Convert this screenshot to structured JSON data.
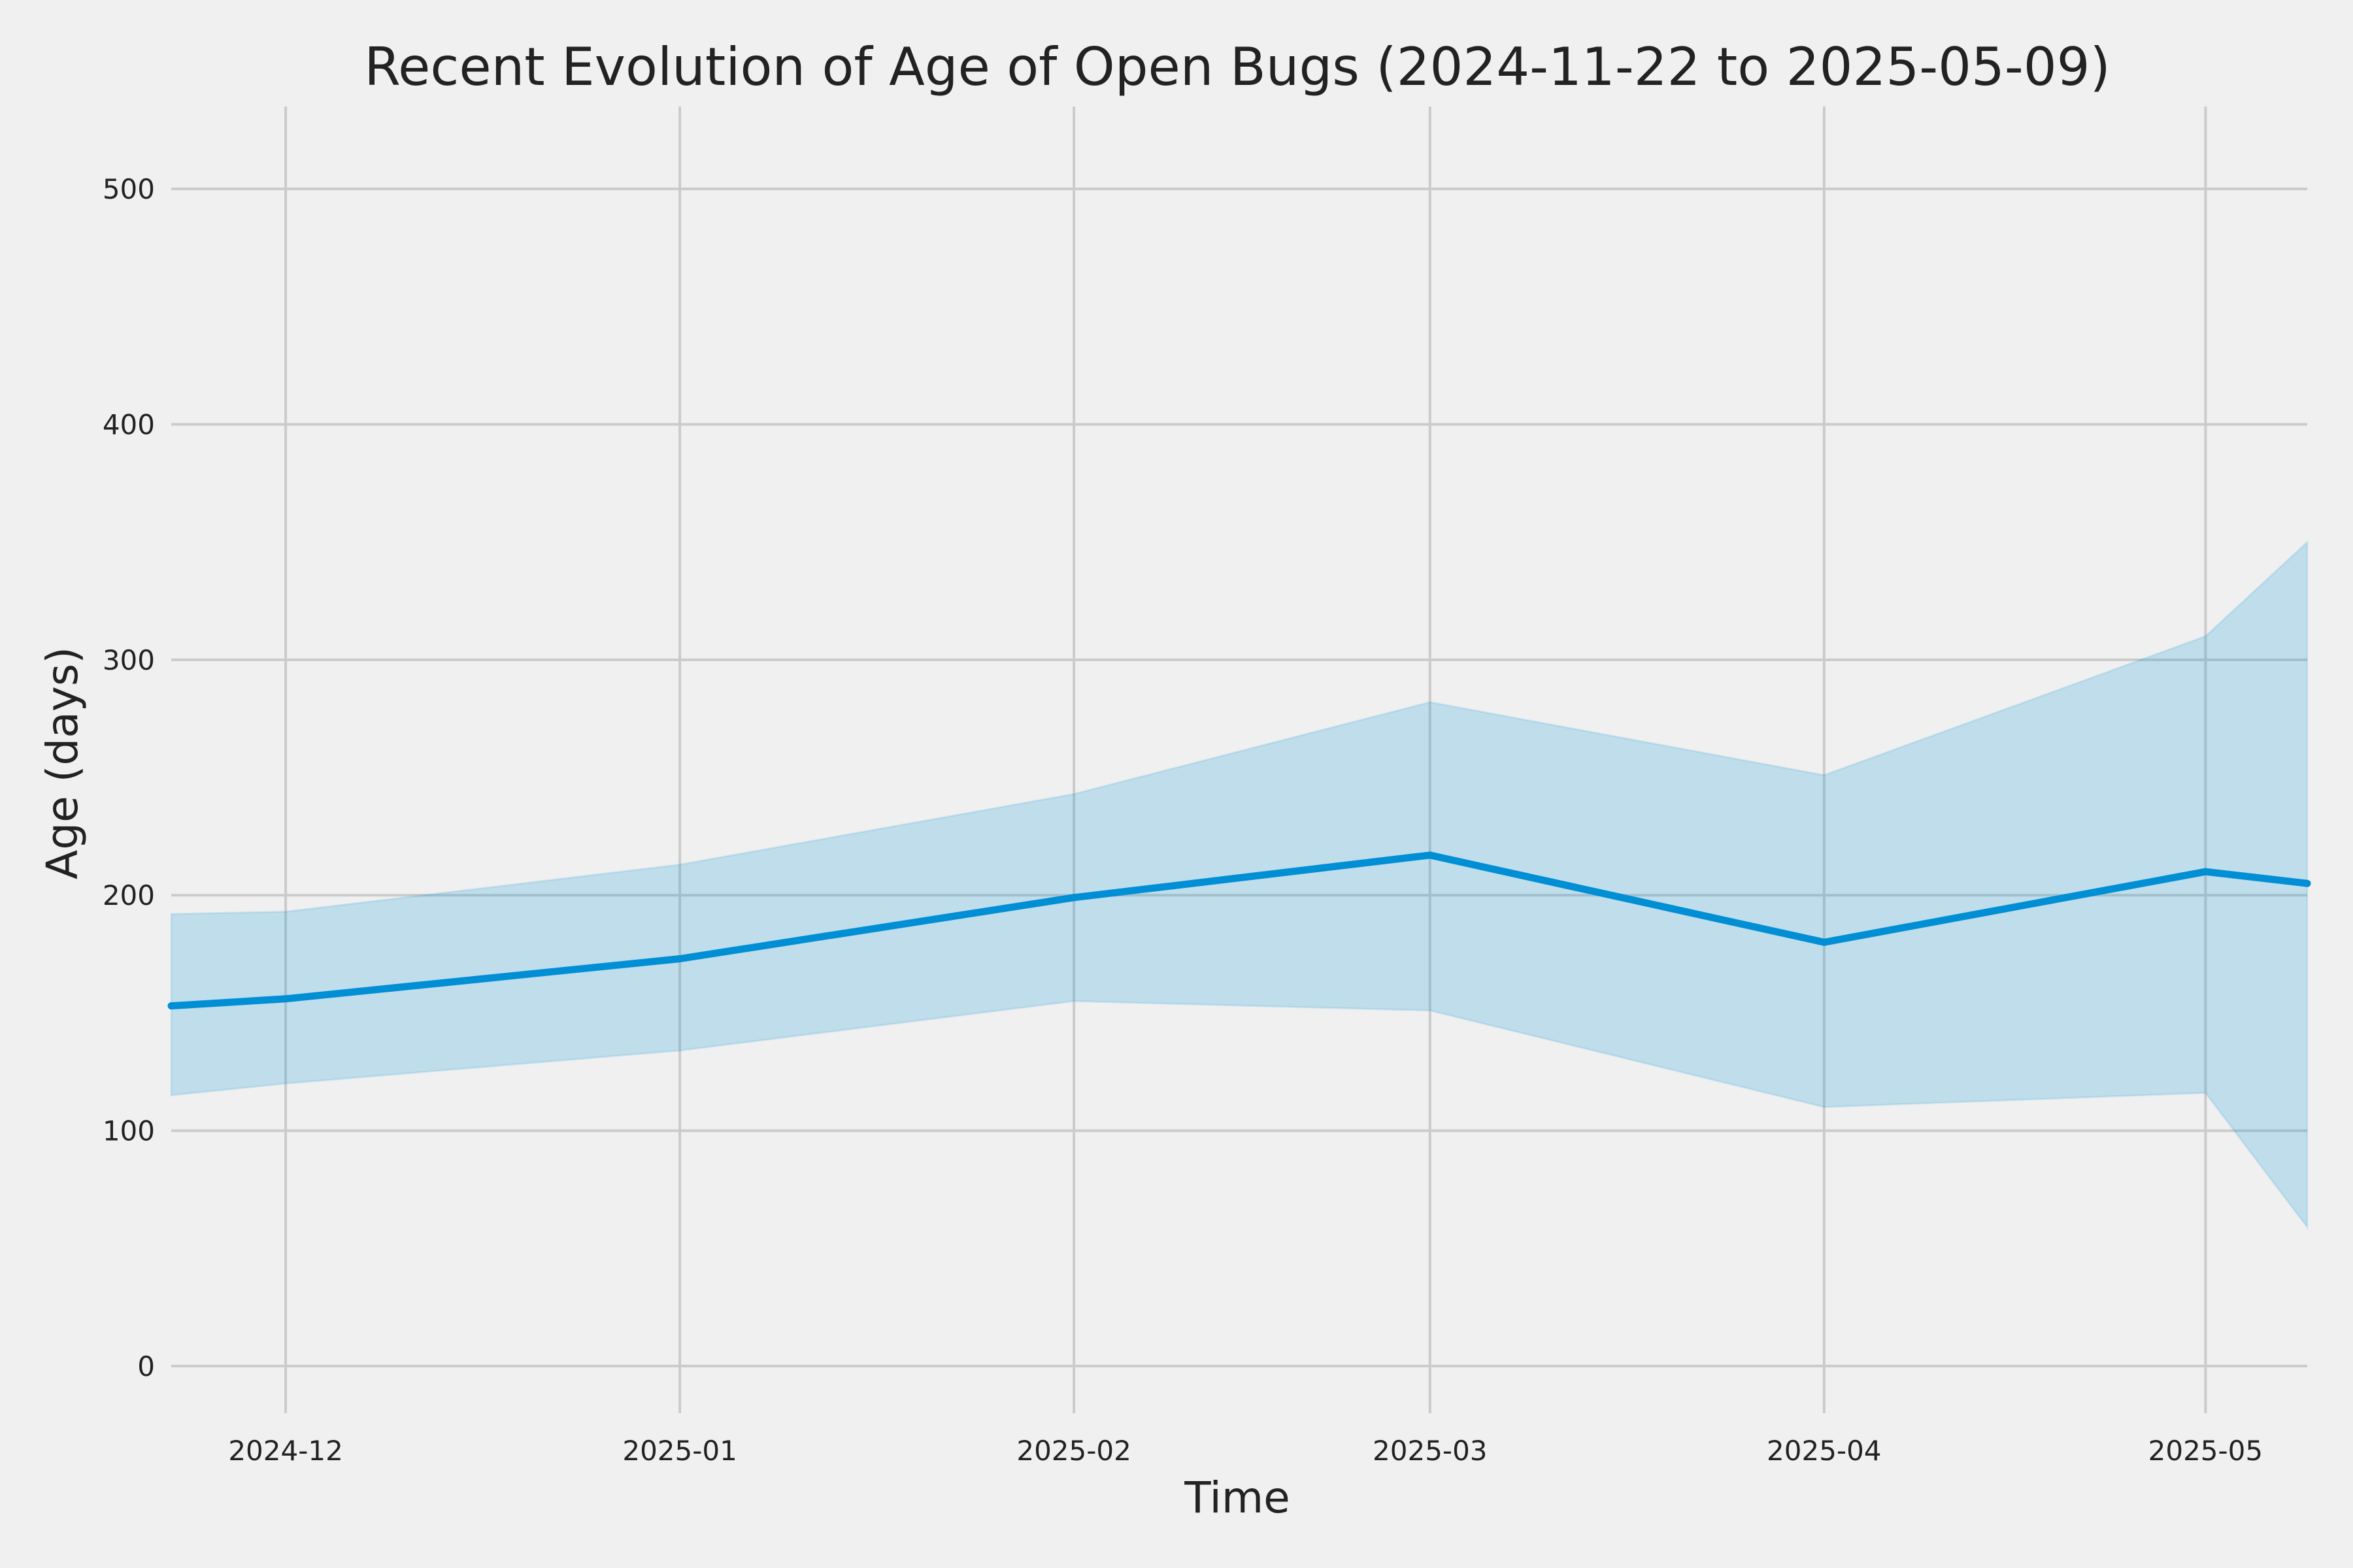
{
  "chart_data": {
    "type": "line",
    "title": "Recent Evolution of Age of Open Bugs (2024-11-22 to 2025-05-09)",
    "xlabel": "Time",
    "ylabel": "Age (days)",
    "xlim": [
      "2024-11-22",
      "2025-05-09"
    ],
    "ylim": [
      -20,
      535
    ],
    "xticks": [
      {
        "date": "2024-12-01",
        "label": "2024-12"
      },
      {
        "date": "2025-01-01",
        "label": "2025-01"
      },
      {
        "date": "2025-02-01",
        "label": "2025-02"
      },
      {
        "date": "2025-03-01",
        "label": "2025-03"
      },
      {
        "date": "2025-04-01",
        "label": "2025-04"
      },
      {
        "date": "2025-05-01",
        "label": "2025-05"
      }
    ],
    "yticks": [
      0,
      100,
      200,
      300,
      400,
      500
    ],
    "grid": true,
    "legend": "none",
    "colors": {
      "line": "#008fd5",
      "band": "#008fd5",
      "background": "#f0f0f0",
      "grid": "#cbcbcb"
    },
    "series": [
      {
        "x": [
          "2024-11-22",
          "2024-12-01",
          "2025-01-01",
          "2025-02-01",
          "2025-03-01",
          "2025-04-01",
          "2025-05-01",
          "2025-05-09"
        ],
        "y": [
          153,
          156,
          173,
          199,
          217,
          180,
          210,
          205
        ],
        "lower": [
          115,
          120,
          134,
          155,
          151,
          110,
          116,
          59
        ],
        "upper": [
          192,
          193,
          213,
          243,
          282,
          251,
          310,
          350
        ]
      }
    ]
  }
}
